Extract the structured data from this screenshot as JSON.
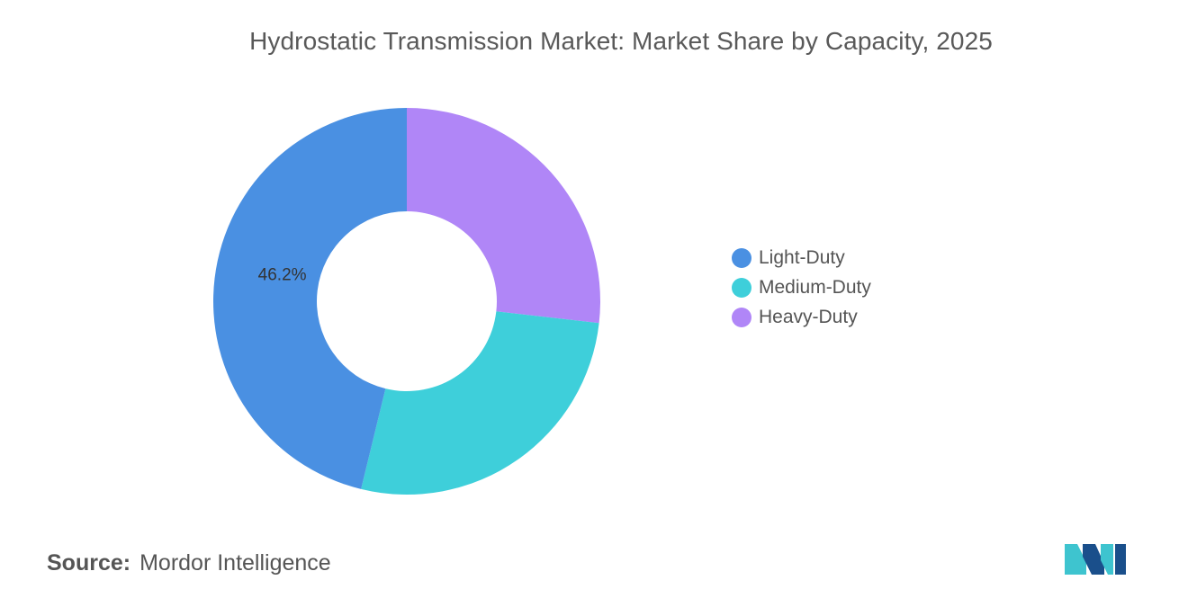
{
  "chart_data": {
    "type": "pie",
    "variant": "donut",
    "title": "Hydrostatic Transmission Market: Market Share by Capacity, 2025",
    "categories": [
      "Light-Duty",
      "Medium-Duty",
      "Heavy-Duty"
    ],
    "values": [
      46.2,
      27.0,
      26.8
    ],
    "colors": [
      "#4a90e2",
      "#3ecfda",
      "#b086f7"
    ],
    "data_labels": [
      "46.2%",
      "",
      ""
    ],
    "legend_position": "right"
  },
  "source": {
    "label": "Source:",
    "value": "Mordor Intelligence"
  },
  "logo": {
    "icon": "mordor-intelligence-logo",
    "colors": [
      "#1a4f8b",
      "#3ec4cf"
    ]
  }
}
